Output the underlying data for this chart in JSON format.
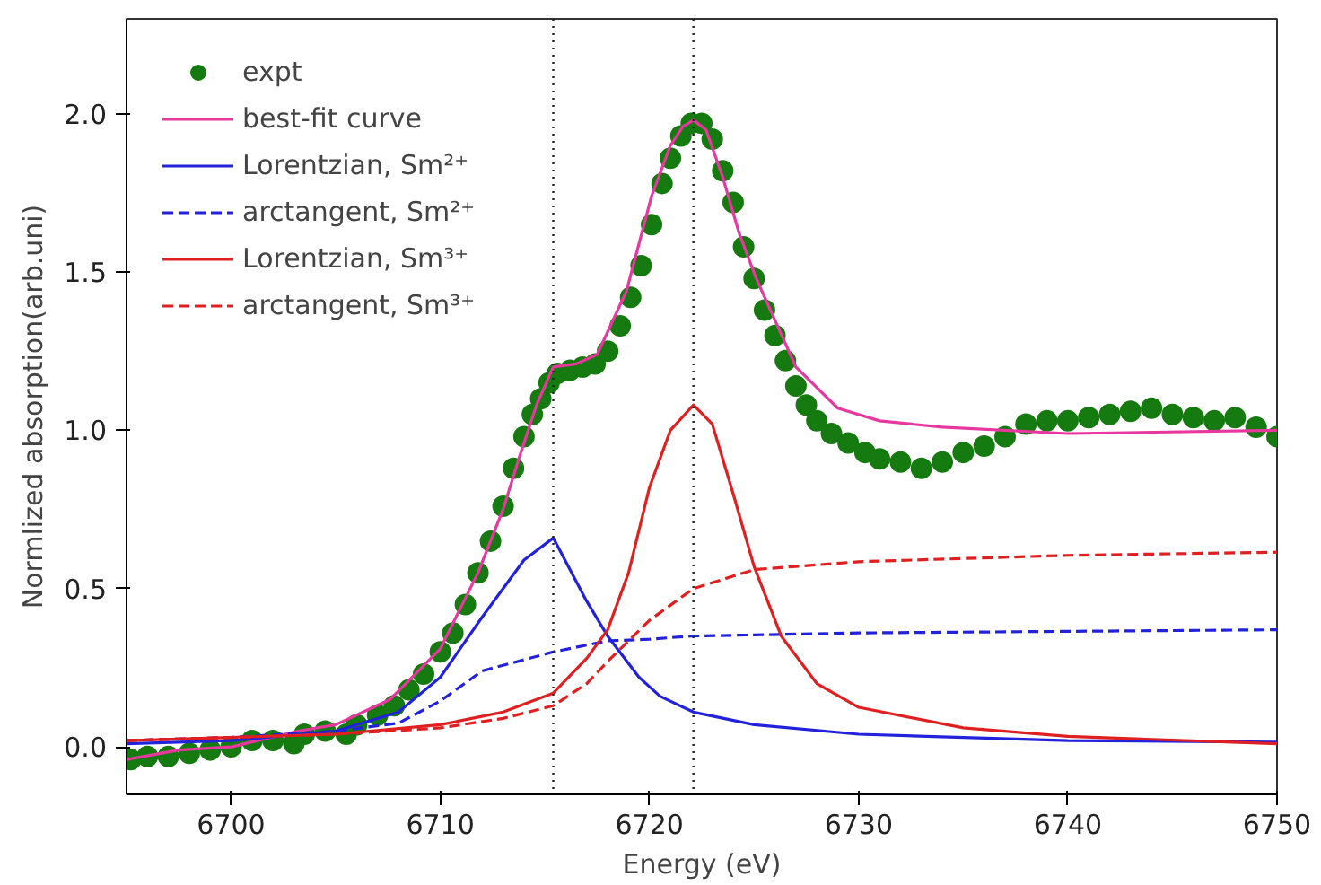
{
  "chart_data": {
    "type": "line",
    "xlabel": "Energy (eV)",
    "ylabel": "Normlized absorption(arb.uni)",
    "xlim": [
      6695,
      6750
    ],
    "ylim": [
      -0.15,
      2.3
    ],
    "xticks": [
      6700,
      6710,
      6720,
      6730,
      6740,
      6750
    ],
    "yticks": [
      {
        "value": 0,
        "label": "0.0"
      },
      {
        "value": 0.5,
        "label": "0.5"
      },
      {
        "value": 1,
        "label": "1.0"
      },
      {
        "value": 1.5,
        "label": "1.5"
      },
      {
        "value": 2,
        "label": "2.0"
      }
    ],
    "grid": false,
    "legend": "top left",
    "ref_lines": [
      {
        "axis": "x",
        "value": 6715.4,
        "color": "#222222",
        "line_style": "dotted"
      },
      {
        "axis": "x",
        "value": 6722.1,
        "color": "#222222",
        "line_style": "dotted"
      }
    ],
    "series": [
      {
        "name": "expt",
        "type": "scatter",
        "marker": "circle",
        "color": "#157a0f",
        "x": [
          6695.2,
          6696,
          6697,
          6698,
          6699,
          6700,
          6701,
          6702,
          6703,
          6703.5,
          6704.5,
          6705.5,
          6706,
          6707,
          6707.8,
          6708.5,
          6709.2,
          6710,
          6710.6,
          6711.2,
          6711.8,
          6712.4,
          6713,
          6713.5,
          6714,
          6714.4,
          6714.8,
          6715.2,
          6715.6,
          6716.2,
          6716.8,
          6717.4,
          6718,
          6718.6,
          6719.1,
          6719.6,
          6720.1,
          6720.6,
          6721,
          6721.5,
          6722,
          6722.5,
          6723,
          6723.5,
          6724,
          6724.5,
          6725,
          6725.5,
          6726,
          6726.5,
          6727,
          6727.5,
          6728,
          6728.7,
          6729.5,
          6730.3,
          6731,
          6732,
          6733,
          6734,
          6735,
          6736,
          6737,
          6738,
          6739,
          6740,
          6741,
          6742,
          6743,
          6744,
          6745,
          6746,
          6747,
          6748,
          6749,
          6750
        ],
        "values": [
          -0.04,
          -0.03,
          -0.03,
          -0.02,
          -0.01,
          0.0,
          0.02,
          0.02,
          0.01,
          0.04,
          0.05,
          0.04,
          0.07,
          0.1,
          0.13,
          0.18,
          0.23,
          0.3,
          0.36,
          0.45,
          0.55,
          0.65,
          0.76,
          0.88,
          0.98,
          1.05,
          1.1,
          1.15,
          1.18,
          1.19,
          1.2,
          1.21,
          1.25,
          1.33,
          1.42,
          1.52,
          1.65,
          1.78,
          1.86,
          1.93,
          1.97,
          1.97,
          1.92,
          1.82,
          1.72,
          1.58,
          1.48,
          1.38,
          1.3,
          1.22,
          1.14,
          1.08,
          1.03,
          0.99,
          0.96,
          0.93,
          0.91,
          0.9,
          0.88,
          0.9,
          0.93,
          0.95,
          0.98,
          1.02,
          1.03,
          1.03,
          1.04,
          1.05,
          1.06,
          1.07,
          1.05,
          1.04,
          1.03,
          1.04,
          1.01,
          0.98
        ]
      },
      {
        "name": "best-fit curve",
        "line_style": "solid",
        "color": "#e8379f",
        "x": [
          6695,
          6697.5,
          6700,
          6703.2,
          6705,
          6707.6,
          6710,
          6711.8,
          6713,
          6713.8,
          6714.6,
          6715.4,
          6716.5,
          6717.5,
          6718.9,
          6720.1,
          6721,
          6721.6,
          6722.1,
          6722.7,
          6723.5,
          6724.3,
          6725.1,
          6727,
          6729,
          6731,
          6734,
          6740,
          6750
        ],
        "values": [
          -0.04,
          -0.01,
          0.0,
          0.05,
          0.07,
          0.15,
          0.31,
          0.55,
          0.75,
          0.92,
          1.08,
          1.2,
          1.21,
          1.24,
          1.44,
          1.74,
          1.9,
          1.96,
          1.98,
          1.95,
          1.8,
          1.62,
          1.48,
          1.2,
          1.07,
          1.03,
          1.01,
          0.99,
          1.0
        ]
      },
      {
        "name": "Lorentzian, Sm²⁺",
        "line_style": "solid",
        "color": "#2222dd",
        "x": [
          6695,
          6700,
          6705,
          6708,
          6710,
          6712,
          6714,
          6715.4,
          6717,
          6718,
          6719.5,
          6720.5,
          6722.1,
          6725,
          6730,
          6740,
          6750
        ],
        "values": [
          0.01,
          0.02,
          0.05,
          0.11,
          0.22,
          0.41,
          0.59,
          0.66,
          0.46,
          0.35,
          0.22,
          0.16,
          0.11,
          0.07,
          0.04,
          0.02,
          0.015
        ]
      },
      {
        "name": "arctangent, Sm²⁺",
        "line_style": "dashed",
        "color": "#2222dd",
        "x": [
          6695,
          6700,
          6705,
          6708,
          6710,
          6712,
          6715.4,
          6718,
          6720,
          6722,
          6730,
          6740,
          6750
        ],
        "values": [
          0.02,
          0.03,
          0.05,
          0.075,
          0.145,
          0.24,
          0.3,
          0.335,
          0.34,
          0.35,
          0.36,
          0.365,
          0.37
        ]
      },
      {
        "name": "Lorentzian, Sm³⁺",
        "line_style": "solid",
        "color": "#e02020",
        "x": [
          6695,
          6700,
          6705,
          6710,
          6713,
          6715.4,
          6717,
          6718,
          6719,
          6720,
          6721,
          6722.1,
          6723,
          6724,
          6725,
          6726.3,
          6728,
          6730,
          6735,
          6740,
          6750
        ],
        "values": [
          0.02,
          0.03,
          0.04,
          0.07,
          0.11,
          0.17,
          0.28,
          0.37,
          0.55,
          0.82,
          1.0,
          1.08,
          1.02,
          0.8,
          0.57,
          0.35,
          0.2,
          0.125,
          0.06,
          0.033,
          0.01
        ]
      },
      {
        "name": "arctangent, Sm³⁺",
        "line_style": "dashed",
        "color": "#e02020",
        "x": [
          6695,
          6705,
          6710,
          6713,
          6715.4,
          6717,
          6718,
          6720,
          6722.1,
          6725,
          6730,
          6740,
          6750
        ],
        "values": [
          0.02,
          0.04,
          0.06,
          0.09,
          0.13,
          0.2,
          0.27,
          0.4,
          0.5,
          0.56,
          0.585,
          0.605,
          0.615
        ]
      }
    ]
  }
}
